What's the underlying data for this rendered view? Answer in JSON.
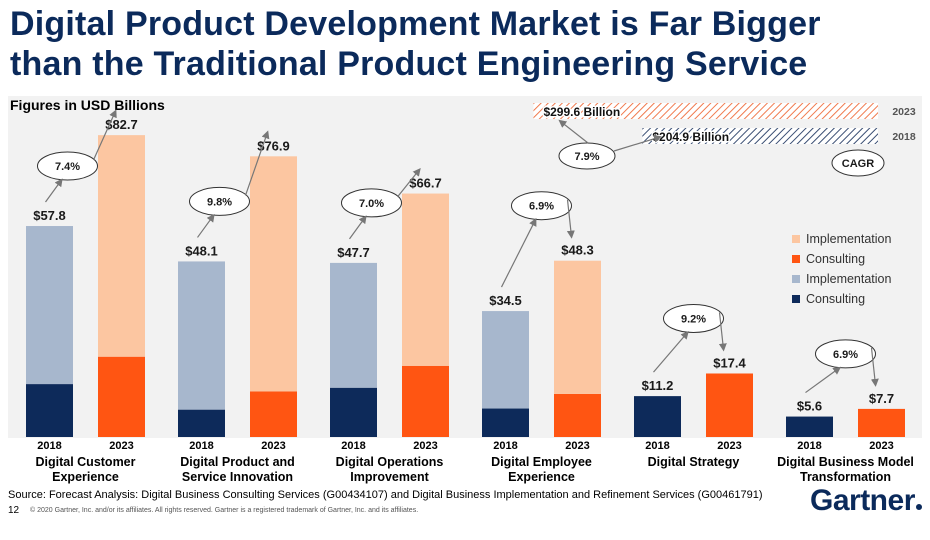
{
  "title_line1": "Digital Product Development Market is Far Bigger",
  "title_line2": "than the Traditional Product Engineering Service",
  "units_label": "Figures in USD Billions",
  "source": "Source: Forecast Analysis: Digital Business Consulting Services (G00434107) and Digital Business Implementation and Refinement Services (G00461791)",
  "page_number": "12",
  "copyright": "© 2020 Gartner, Inc. and/or its affiliates. All rights reserved. Gartner is a registered trademark of Gartner, Inc. and its affiliates.",
  "logo_text": "Gartner",
  "colors": {
    "consulting_2018": "#0d2a5a",
    "implementation_2018": "#a7b7cd",
    "consulting_2023": "#ff5512",
    "implementation_2023": "#fcc6a1",
    "title": "#0b2a5b"
  },
  "chart_data": {
    "type": "bar",
    "stacked": true,
    "units": "USD Billions",
    "ylim": [
      0,
      90
    ],
    "grid": false,
    "legend_position": "right",
    "legend": [
      {
        "label": "Implementation",
        "color": "#fcc6a1"
      },
      {
        "label": "Consulting",
        "color": "#ff5512"
      },
      {
        "label": "Implementation",
        "color": "#a7b7cd"
      },
      {
        "label": "Consulting",
        "color": "#0d2a5a"
      }
    ],
    "groups": [
      {
        "name": "Digital Customer Experience",
        "name_lines": [
          "Digital Customer",
          "Experience"
        ],
        "cagr": "7.4%",
        "bars": [
          {
            "year": "2018",
            "total": 57.8,
            "total_label": "$57.8",
            "consulting": 14.5,
            "implementation": 43.3
          },
          {
            "year": "2023",
            "total": 82.7,
            "total_label": "$82.7",
            "consulting": 22.0,
            "implementation": 60.7
          }
        ]
      },
      {
        "name": "Digital Product and Service Innovation",
        "name_lines": [
          "Digital Product and",
          "Service Innovation"
        ],
        "cagr": "9.8%",
        "bars": [
          {
            "year": "2018",
            "total": 48.1,
            "total_label": "$48.1",
            "consulting": 7.5,
            "implementation": 40.6
          },
          {
            "year": "2023",
            "total": 76.9,
            "total_label": "$76.9",
            "consulting": 12.5,
            "implementation": 64.4
          }
        ]
      },
      {
        "name": "Digital Operations Improvement",
        "name_lines": [
          "Digital Operations",
          "Improvement"
        ],
        "cagr": "7.0%",
        "bars": [
          {
            "year": "2018",
            "total": 47.7,
            "total_label": "$47.7",
            "consulting": 13.5,
            "implementation": 34.2
          },
          {
            "year": "2023",
            "total": 66.7,
            "total_label": "$66.7",
            "consulting": 19.5,
            "implementation": 47.2
          }
        ]
      },
      {
        "name": "Digital Employee Experience",
        "name_lines": [
          "Digital Employee",
          "Experience"
        ],
        "cagr": "6.9%",
        "bars": [
          {
            "year": "2018",
            "total": 34.5,
            "total_label": "$34.5",
            "consulting": 7.8,
            "implementation": 26.7
          },
          {
            "year": "2023",
            "total": 48.3,
            "total_label": "$48.3",
            "consulting": 11.8,
            "implementation": 36.5
          }
        ]
      },
      {
        "name": "Digital Strategy",
        "name_lines": [
          "Digital Strategy"
        ],
        "cagr": "9.2%",
        "bars": [
          {
            "year": "2018",
            "total": 11.2,
            "total_label": "$11.2",
            "consulting": 11.2,
            "implementation": 0
          },
          {
            "year": "2023",
            "total": 17.4,
            "total_label": "$17.4",
            "consulting": 17.4,
            "implementation": 0
          }
        ]
      },
      {
        "name": "Digital Business Model Transformation",
        "name_lines": [
          "Digital Business Model",
          "Transformation"
        ],
        "cagr": "6.9%",
        "bars": [
          {
            "year": "2018",
            "total": 5.6,
            "total_label": "$5.6",
            "consulting": 5.6,
            "implementation": 0
          },
          {
            "year": "2023",
            "total": 7.7,
            "total_label": "$7.7",
            "consulting": 7.7,
            "implementation": 0
          }
        ]
      }
    ],
    "summary": {
      "bars": [
        {
          "year": "2023",
          "total": 299.6,
          "label": "$299.6 Billion"
        },
        {
          "year": "2018",
          "total": 204.9,
          "label": "$204.9 Billion"
        }
      ],
      "cagr": "7.9%",
      "cagr_key_label": "CAGR"
    }
  }
}
